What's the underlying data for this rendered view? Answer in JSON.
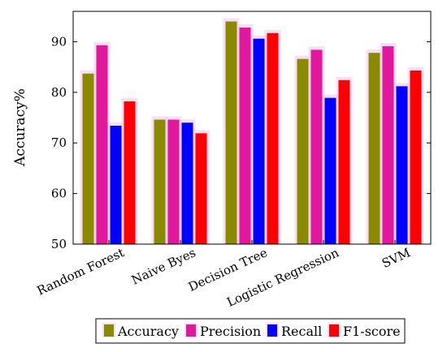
{
  "chart_data": {
    "type": "bar",
    "categories": [
      "Random Forest",
      "Naive Byes",
      "Decision Tree",
      "Logistic Regression",
      "SVM"
    ],
    "series": [
      {
        "name": "Accuracy",
        "color": "#8a8a00",
        "values": [
          83.7,
          74.6,
          94.0,
          86.6,
          87.8
        ]
      },
      {
        "name": "Precision",
        "color": "#e0189c",
        "values": [
          89.3,
          74.6,
          92.8,
          88.4,
          89.1
        ]
      },
      {
        "name": "Recall",
        "color": "#0000ff",
        "values": [
          73.4,
          74.0,
          90.6,
          78.9,
          81.2
        ]
      },
      {
        "name": "F1-score",
        "color": "#ff0000",
        "values": [
          78.2,
          71.9,
          91.7,
          82.4,
          84.3
        ]
      }
    ],
    "ylabel": "Accuracy%",
    "ylim": [
      50,
      96
    ],
    "yticks": [
      50,
      60,
      70,
      80,
      90
    ],
    "legend_position": "bottom",
    "grid": false
  }
}
